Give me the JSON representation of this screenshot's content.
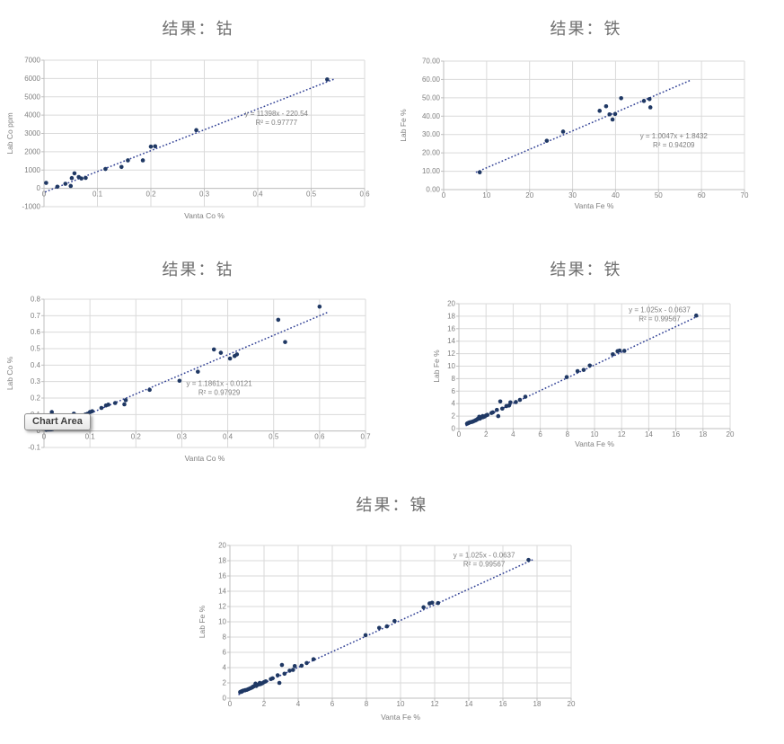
{
  "page": {
    "background": "#ffffff"
  },
  "tooltip": {
    "label": "Chart Area"
  },
  "colors": {
    "point": "#1f3864",
    "trend": "#2f3f94",
    "grid": "#dadada",
    "axis": "#bfbfbf",
    "tick_text": "#7f7f7f",
    "title_text": "#6f6f6f",
    "equation_text": "#7f7f7f"
  },
  "chart_data": [
    {
      "type": "scatter",
      "title": "结果：钴",
      "xlabel": "Vanta Co %",
      "ylabel": "Lab Co ppm",
      "xlim": [
        0,
        0.6
      ],
      "ylim": [
        -1000,
        7000
      ],
      "grid": true,
      "legend": false,
      "xtick_values": [
        0,
        0.1,
        0.2,
        0.3,
        0.4,
        0.5,
        0.6
      ],
      "xtick_labels": [
        "0",
        "0.1",
        "0.2",
        "0.3",
        "0.4",
        "0.5",
        "0.6"
      ],
      "ytick_values": [
        -1000,
        0,
        1000,
        2000,
        3000,
        4000,
        5000,
        6000,
        7000
      ],
      "ytick_labels": [
        "-1000",
        "0",
        "1000",
        "2000",
        "3000",
        "4000",
        "5000",
        "6000",
        "7000"
      ],
      "points": [
        [
          0.004,
          300
        ],
        [
          0.025,
          90
        ],
        [
          0.04,
          250
        ],
        [
          0.05,
          130
        ],
        [
          0.052,
          560
        ],
        [
          0.057,
          820
        ],
        [
          0.065,
          620
        ],
        [
          0.07,
          540
        ],
        [
          0.078,
          570
        ],
        [
          0.115,
          1060
        ],
        [
          0.145,
          1170
        ],
        [
          0.157,
          1530
        ],
        [
          0.185,
          1530
        ],
        [
          0.2,
          2280
        ],
        [
          0.208,
          2300
        ],
        [
          0.285,
          3180
        ],
        [
          0.53,
          5950
        ]
      ],
      "trend": {
        "slope": 11398,
        "intercept": -220.54,
        "x_range": [
          0.002,
          0.545
        ]
      },
      "equation": "y = 11398x - 220.54",
      "r_squared": "R² = 0.97777",
      "equation_pos": [
        0.725,
        0.38
      ]
    },
    {
      "type": "scatter",
      "title": "结果：铁",
      "xlabel": "Vanta Fe %",
      "ylabel": "Lab Fe %",
      "xlim": [
        0,
        70
      ],
      "ylim": [
        0,
        70
      ],
      "grid": true,
      "legend": false,
      "xtick_values": [
        0,
        10,
        20,
        30,
        40,
        50,
        60,
        70
      ],
      "xtick_labels": [
        "0",
        "10",
        "20",
        "30",
        "40",
        "50",
        "60",
        "70"
      ],
      "ytick_values": [
        0,
        10,
        20,
        30,
        40,
        50,
        60,
        70
      ],
      "ytick_labels": [
        "0.00",
        "10.00",
        "20.00",
        "30.00",
        "40.00",
        "50.00",
        "60.00",
        "70.00"
      ],
      "points": [
        [
          8.4,
          9.4
        ],
        [
          24,
          26.6
        ],
        [
          27.8,
          31.6
        ],
        [
          36.3,
          42.9
        ],
        [
          37.8,
          45.4
        ],
        [
          38.6,
          41.0
        ],
        [
          39.3,
          38.2
        ],
        [
          39.9,
          41.2
        ],
        [
          41.3,
          49.8
        ],
        [
          46.6,
          48.3
        ],
        [
          47.9,
          49.3
        ],
        [
          48.1,
          44.8
        ]
      ],
      "trend": {
        "slope": 1.0047,
        "intercept": 1.8432,
        "x_range": [
          7.5,
          57.5
        ]
      },
      "equation": "y = 1.0047x + 1.8432",
      "r_squared": "R² = 0.94209",
      "equation_pos": [
        0.765,
        0.6
      ]
    },
    {
      "type": "scatter",
      "title": "结果：钴",
      "xlabel": "Vanta Co %",
      "ylabel": "Lab Co %",
      "xlim": [
        0,
        0.7
      ],
      "ylim": [
        -0.1,
        0.8
      ],
      "grid": true,
      "legend": false,
      "xtick_values": [
        0,
        0.1,
        0.2,
        0.3,
        0.4,
        0.5,
        0.6,
        0.7
      ],
      "xtick_labels": [
        "0",
        "0.1",
        "0.2",
        "0.3",
        "0.4",
        "0.5",
        "0.6",
        "0.7"
      ],
      "ytick_values": [
        -0.1,
        0,
        0.1,
        0.2,
        0.3,
        0.4,
        0.5,
        0.6,
        0.7,
        0.8
      ],
      "ytick_labels": [
        "-0.1",
        "0",
        "0.1",
        "0.2",
        "0.3",
        "0.4",
        "0.5",
        "0.6",
        "0.7",
        "0.8"
      ],
      "points": [
        [
          0.005,
          0.008
        ],
        [
          0.007,
          0.012
        ],
        [
          0.01,
          0.01
        ],
        [
          0.012,
          0.015
        ],
        [
          0.015,
          0.01
        ],
        [
          0.018,
          0.012
        ],
        [
          0.02,
          0.015
        ],
        [
          0.025,
          0.018
        ],
        [
          0.03,
          0.02
        ],
        [
          0.017,
          0.115
        ],
        [
          0.065,
          0.105
        ],
        [
          0.07,
          0.085
        ],
        [
          0.075,
          0.09
        ],
        [
          0.09,
          0.1
        ],
        [
          0.095,
          0.105
        ],
        [
          0.1,
          0.115
        ],
        [
          0.105,
          0.12
        ],
        [
          0.125,
          0.14
        ],
        [
          0.135,
          0.155
        ],
        [
          0.14,
          0.16
        ],
        [
          0.155,
          0.17
        ],
        [
          0.175,
          0.162
        ],
        [
          0.178,
          0.187
        ],
        [
          0.23,
          0.25
        ],
        [
          0.295,
          0.305
        ],
        [
          0.335,
          0.36
        ],
        [
          0.37,
          0.495
        ],
        [
          0.385,
          0.475
        ],
        [
          0.405,
          0.44
        ],
        [
          0.415,
          0.455
        ],
        [
          0.42,
          0.465
        ],
        [
          0.51,
          0.675
        ],
        [
          0.525,
          0.54
        ],
        [
          0.6,
          0.755
        ]
      ],
      "trend": {
        "slope": 1.1861,
        "intercept": -0.0121,
        "x_range": [
          0.01,
          0.62
        ]
      },
      "equation": "y = 1.1861x - 0.0121",
      "r_squared": "R² = 0.97929",
      "equation_pos": [
        0.545,
        0.585
      ]
    },
    {
      "type": "scatter",
      "title": "结果：铁",
      "xlabel": "Vanta Fe %",
      "ylabel": "Lab Fe %",
      "xlim": [
        0,
        20
      ],
      "ylim": [
        0,
        20
      ],
      "grid": true,
      "legend": false,
      "xtick_values": [
        0,
        2,
        4,
        6,
        8,
        10,
        12,
        14,
        16,
        18,
        20
      ],
      "xtick_labels": [
        "0",
        "2",
        "4",
        "6",
        "8",
        "10",
        "12",
        "14",
        "16",
        "18",
        "20"
      ],
      "ytick_values": [
        0,
        2,
        4,
        6,
        8,
        10,
        12,
        14,
        16,
        18,
        20
      ],
      "ytick_labels": [
        "0",
        "2",
        "4",
        "6",
        "8",
        "10",
        "12",
        "14",
        "16",
        "18",
        "20"
      ],
      "points": [
        [
          0.6,
          0.8
        ],
        [
          0.65,
          0.85
        ],
        [
          0.7,
          0.9
        ],
        [
          0.75,
          0.95
        ],
        [
          0.8,
          1
        ],
        [
          0.9,
          1.05
        ],
        [
          1,
          1.1
        ],
        [
          1.1,
          1.2
        ],
        [
          1.2,
          1.3
        ],
        [
          1.3,
          1.4
        ],
        [
          1.35,
          1.5
        ],
        [
          1.4,
          1.55
        ],
        [
          1.5,
          1.9
        ],
        [
          1.55,
          1.6
        ],
        [
          1.6,
          1.75
        ],
        [
          1.7,
          1.8
        ],
        [
          1.75,
          2
        ],
        [
          1.8,
          1.85
        ],
        [
          1.9,
          1.95
        ],
        [
          2,
          2.1
        ],
        [
          2.1,
          2.2
        ],
        [
          2.4,
          2.5
        ],
        [
          2.5,
          2.6
        ],
        [
          2.8,
          3
        ],
        [
          2.9,
          2
        ],
        [
          3.05,
          4.35
        ],
        [
          3.2,
          3.2
        ],
        [
          3.5,
          3.6
        ],
        [
          3.7,
          3.7
        ],
        [
          3.8,
          4.2
        ],
        [
          4.2,
          4.25
        ],
        [
          4.5,
          4.6
        ],
        [
          4.9,
          5.1
        ],
        [
          7.95,
          8.25
        ],
        [
          8.75,
          9.2
        ],
        [
          9.2,
          9.4
        ],
        [
          9.65,
          10.1
        ],
        [
          11.35,
          11.9
        ],
        [
          11.7,
          12.4
        ],
        [
          11.85,
          12.5
        ],
        [
          12.2,
          12.45
        ],
        [
          17.5,
          18.1
        ]
      ],
      "trend": {
        "slope": 1.025,
        "intercept": -0.0637,
        "x_range": [
          0.5,
          17.8
        ]
      },
      "equation": "y = 1.025x - 0.0637",
      "r_squared": "R² = 0.99567",
      "equation_pos": [
        0.74,
        0.07
      ]
    },
    {
      "type": "scatter",
      "title": "结果：镍",
      "xlabel": "Vanta Fe %",
      "ylabel": "Lab Fe %",
      "xlim": [
        0,
        20
      ],
      "ylim": [
        0,
        20
      ],
      "grid": true,
      "legend": false,
      "xtick_values": [
        0,
        2,
        4,
        6,
        8,
        10,
        12,
        14,
        16,
        18,
        20
      ],
      "xtick_labels": [
        "0",
        "2",
        "4",
        "6",
        "8",
        "10",
        "12",
        "14",
        "16",
        "18",
        "20"
      ],
      "ytick_values": [
        0,
        2,
        4,
        6,
        8,
        10,
        12,
        14,
        16,
        18,
        20
      ],
      "ytick_labels": [
        "0",
        "2",
        "4",
        "6",
        "8",
        "10",
        "12",
        "14",
        "16",
        "18",
        "20"
      ],
      "points": [
        [
          0.6,
          0.8
        ],
        [
          0.65,
          0.85
        ],
        [
          0.7,
          0.9
        ],
        [
          0.75,
          0.95
        ],
        [
          0.8,
          1
        ],
        [
          0.9,
          1.05
        ],
        [
          1,
          1.1
        ],
        [
          1.1,
          1.2
        ],
        [
          1.2,
          1.3
        ],
        [
          1.3,
          1.4
        ],
        [
          1.35,
          1.5
        ],
        [
          1.4,
          1.55
        ],
        [
          1.5,
          1.9
        ],
        [
          1.55,
          1.6
        ],
        [
          1.6,
          1.75
        ],
        [
          1.7,
          1.8
        ],
        [
          1.75,
          2
        ],
        [
          1.8,
          1.85
        ],
        [
          1.9,
          1.95
        ],
        [
          2,
          2.1
        ],
        [
          2.1,
          2.2
        ],
        [
          2.4,
          2.5
        ],
        [
          2.5,
          2.6
        ],
        [
          2.8,
          3
        ],
        [
          2.9,
          2
        ],
        [
          3.05,
          4.35
        ],
        [
          3.2,
          3.2
        ],
        [
          3.5,
          3.6
        ],
        [
          3.7,
          3.7
        ],
        [
          3.8,
          4.2
        ],
        [
          4.2,
          4.25
        ],
        [
          4.5,
          4.6
        ],
        [
          4.9,
          5.1
        ],
        [
          7.95,
          8.25
        ],
        [
          8.75,
          9.2
        ],
        [
          9.2,
          9.4
        ],
        [
          9.65,
          10.1
        ],
        [
          11.35,
          11.9
        ],
        [
          11.7,
          12.4
        ],
        [
          11.85,
          12.5
        ],
        [
          12.2,
          12.45
        ],
        [
          17.5,
          18.1
        ]
      ],
      "trend": {
        "slope": 1.025,
        "intercept": -0.0637,
        "x_range": [
          0.5,
          17.8
        ]
      },
      "equation": "y = 1.025x - 0.0637",
      "r_squared": "R² = 0.99567",
      "equation_pos": [
        0.745,
        0.08
      ]
    }
  ]
}
